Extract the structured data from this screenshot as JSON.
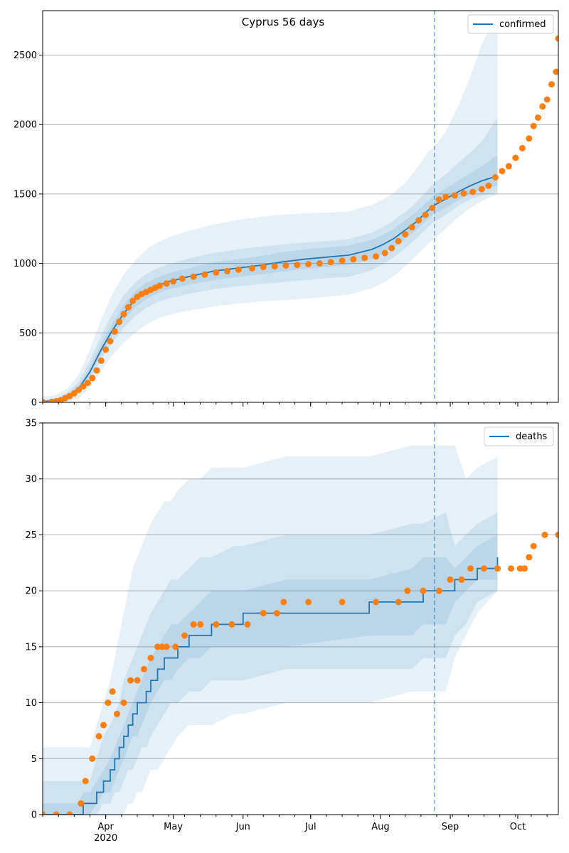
{
  "figure": {
    "title": "Cyprus 56 days",
    "x_ticks": [
      {
        "date": "2020-04-01",
        "label": "Apr",
        "sublabel": "2020"
      },
      {
        "date": "2020-05-01",
        "label": "May",
        "sublabel": ""
      },
      {
        "date": "2020-06-01",
        "label": "Jun",
        "sublabel": ""
      },
      {
        "date": "2020-07-01",
        "label": "Jul",
        "sublabel": ""
      },
      {
        "date": "2020-08-01",
        "label": "Aug",
        "sublabel": ""
      },
      {
        "date": "2020-09-01",
        "label": "Sep",
        "sublabel": ""
      },
      {
        "date": "2020-10-01",
        "label": "Oct",
        "sublabel": ""
      }
    ],
    "colors": {
      "line": "#1f77b4",
      "observed": "#ff7f0e",
      "band": "#1f77b4",
      "grid": "#b0b0b0",
      "vline": "#1f77b4"
    }
  },
  "chart_data": [
    {
      "type": "line",
      "legend": "confirmed",
      "legend_position": "top-right",
      "xlim": [
        "2020-03-04",
        "2020-10-19"
      ],
      "ylim": [
        0,
        2820
      ],
      "y_ticks": [
        0,
        500,
        1000,
        1500,
        2000,
        2500
      ],
      "grid": "horizontal",
      "forecast_start": "2020-08-25",
      "model_median": {
        "x": [
          "2020-03-04",
          "2020-03-10",
          "2020-03-15",
          "2020-03-20",
          "2020-03-25",
          "2020-03-30",
          "2020-04-04",
          "2020-04-09",
          "2020-04-14",
          "2020-04-19",
          "2020-04-24",
          "2020-04-29",
          "2020-05-09",
          "2020-05-19",
          "2020-05-29",
          "2020-06-08",
          "2020-06-18",
          "2020-06-28",
          "2020-07-08",
          "2020-07-18",
          "2020-07-28",
          "2020-08-02",
          "2020-08-07",
          "2020-08-12",
          "2020-08-17",
          "2020-08-22",
          "2020-08-25",
          "2020-08-30",
          "2020-09-05",
          "2020-09-10",
          "2020-09-15",
          "2020-09-22"
        ],
        "y": [
          5,
          15,
          40,
          100,
          220,
          380,
          520,
          640,
          740,
          800,
          840,
          870,
          910,
          945,
          965,
          985,
          1010,
          1030,
          1045,
          1060,
          1100,
          1135,
          1180,
          1240,
          1300,
          1380,
          1420,
          1465,
          1520,
          1560,
          1595,
          1630
        ]
      },
      "bands": [
        {
          "level": "outer",
          "lower": [
            0,
            0,
            5,
            30,
            110,
            230,
            340,
            430,
            500,
            560,
            600,
            630,
            665,
            690,
            710,
            725,
            735,
            745,
            760,
            775,
            820,
            860,
            910,
            980,
            1060,
            1140,
            1180,
            1250,
            1340,
            1400,
            1450,
            1500
          ],
          "upper": [
            40,
            55,
            100,
            200,
            380,
            600,
            780,
            920,
            1020,
            1100,
            1150,
            1190,
            1240,
            1280,
            1310,
            1335,
            1350,
            1360,
            1365,
            1375,
            1420,
            1460,
            1510,
            1580,
            1680,
            1800,
            1840,
            1950,
            2150,
            2350,
            2580,
            2800
          ]
        },
        {
          "level": "middle",
          "lower": [
            1,
            5,
            20,
            65,
            165,
            310,
            430,
            535,
            620,
            680,
            720,
            750,
            785,
            815,
            835,
            850,
            865,
            880,
            895,
            905,
            950,
            995,
            1045,
            1110,
            1180,
            1260,
            1300,
            1350,
            1420,
            1460,
            1490,
            1510
          ],
          "upper": [
            15,
            30,
            70,
            150,
            300,
            480,
            640,
            770,
            860,
            925,
            965,
            995,
            1040,
            1075,
            1100,
            1120,
            1135,
            1150,
            1160,
            1175,
            1220,
            1260,
            1310,
            1370,
            1440,
            1530,
            1580,
            1640,
            1730,
            1800,
            1880,
            2050
          ]
        },
        {
          "level": "inner",
          "lower": [
            3,
            10,
            30,
            85,
            195,
            350,
            480,
            590,
            685,
            745,
            785,
            815,
            850,
            880,
            900,
            920,
            940,
            960,
            975,
            990,
            1030,
            1070,
            1115,
            1175,
            1240,
            1320,
            1360,
            1400,
            1460,
            1500,
            1530,
            1560
          ],
          "upper": [
            8,
            22,
            52,
            122,
            255,
            420,
            570,
            700,
            800,
            860,
            900,
            930,
            970,
            1010,
            1030,
            1050,
            1080,
            1100,
            1115,
            1130,
            1170,
            1205,
            1250,
            1310,
            1370,
            1450,
            1490,
            1540,
            1600,
            1650,
            1700,
            1780
          ]
        }
      ],
      "observed": {
        "x": [
          "2020-03-04",
          "2020-03-08",
          "2020-03-10",
          "2020-03-12",
          "2020-03-14",
          "2020-03-16",
          "2020-03-18",
          "2020-03-20",
          "2020-03-22",
          "2020-03-24",
          "2020-03-26",
          "2020-03-28",
          "2020-03-30",
          "2020-04-01",
          "2020-04-03",
          "2020-04-05",
          "2020-04-07",
          "2020-04-09",
          "2020-04-11",
          "2020-04-13",
          "2020-04-15",
          "2020-04-17",
          "2020-04-19",
          "2020-04-21",
          "2020-04-23",
          "2020-04-25",
          "2020-04-28",
          "2020-05-01",
          "2020-05-05",
          "2020-05-10",
          "2020-05-15",
          "2020-05-20",
          "2020-05-25",
          "2020-05-30",
          "2020-06-05",
          "2020-06-10",
          "2020-06-15",
          "2020-06-20",
          "2020-06-25",
          "2020-06-30",
          "2020-07-05",
          "2020-07-10",
          "2020-07-15",
          "2020-07-20",
          "2020-07-25",
          "2020-07-30",
          "2020-08-03",
          "2020-08-06",
          "2020-08-09",
          "2020-08-12",
          "2020-08-15",
          "2020-08-18",
          "2020-08-21",
          "2020-08-24",
          "2020-08-27",
          "2020-08-30",
          "2020-09-03",
          "2020-09-07",
          "2020-09-11",
          "2020-09-15",
          "2020-09-18",
          "2020-09-21",
          "2020-09-24",
          "2020-09-27",
          "2020-09-30",
          "2020-10-03",
          "2020-10-06",
          "2020-10-08",
          "2020-10-10",
          "2020-10-12",
          "2020-10-14",
          "2020-10-16",
          "2020-10-18",
          "2020-10-19"
        ],
        "y": [
          2,
          4,
          8,
          15,
          30,
          45,
          65,
          90,
          115,
          140,
          175,
          230,
          300,
          380,
          440,
          510,
          580,
          635,
          685,
          730,
          760,
          780,
          795,
          810,
          825,
          840,
          855,
          870,
          890,
          905,
          920,
          935,
          945,
          955,
          965,
          975,
          980,
          985,
          990,
          995,
          1000,
          1010,
          1020,
          1030,
          1040,
          1050,
          1075,
          1110,
          1160,
          1210,
          1260,
          1310,
          1350,
          1400,
          1460,
          1480,
          1490,
          1505,
          1515,
          1535,
          1560,
          1620,
          1665,
          1700,
          1760,
          1830,
          1900,
          1990,
          2050,
          2130,
          2180,
          2290,
          2380,
          2620
        ]
      }
    },
    {
      "type": "line",
      "legend": "deaths",
      "legend_position": "top-right",
      "xlim": [
        "2020-03-04",
        "2020-10-19"
      ],
      "ylim": [
        0,
        35
      ],
      "y_ticks": [
        0,
        5,
        10,
        15,
        20,
        25,
        30,
        35
      ],
      "grid": "horizontal",
      "forecast_start": "2020-08-25",
      "model_median": {
        "x": [
          "2020-03-04",
          "2020-03-20",
          "2020-03-22",
          "2020-03-25",
          "2020-03-28",
          "2020-03-31",
          "2020-04-03",
          "2020-04-05",
          "2020-04-07",
          "2020-04-09",
          "2020-04-11",
          "2020-04-13",
          "2020-04-15",
          "2020-04-17",
          "2020-04-19",
          "2020-04-21",
          "2020-04-24",
          "2020-04-27",
          "2020-04-30",
          "2020-05-03",
          "2020-05-08",
          "2020-05-13",
          "2020-05-18",
          "2020-05-28",
          "2020-06-01",
          "2020-06-20",
          "2020-07-27",
          "2020-08-15",
          "2020-08-20",
          "2020-08-30",
          "2020-09-03",
          "2020-09-08",
          "2020-09-13",
          "2020-09-22"
        ],
        "y": [
          0,
          0,
          1,
          1,
          2,
          3,
          4,
          5,
          6,
          7,
          8,
          9,
          10,
          10,
          11,
          12,
          13,
          14,
          14,
          15,
          16,
          16,
          17,
          17,
          18,
          18,
          19,
          19,
          20,
          20,
          21,
          21,
          22,
          23
        ]
      },
      "bands": [
        {
          "level": "outer",
          "lower": [
            0,
            0,
            0,
            0,
            0,
            0,
            0,
            0,
            0,
            0,
            1,
            1,
            2,
            2,
            3,
            4,
            4,
            5,
            6,
            7,
            8,
            8,
            8,
            9,
            9,
            10,
            10,
            11,
            11,
            11,
            14,
            16,
            18,
            20
          ],
          "upper": [
            6,
            6,
            6,
            6,
            8,
            10,
            12,
            14,
            16,
            18,
            20,
            22,
            23,
            24,
            25,
            26,
            27,
            28,
            28,
            29,
            30,
            30,
            31,
            31,
            31,
            32,
            32,
            33,
            33,
            33,
            33,
            30,
            31,
            32
          ]
        },
        {
          "level": "middle",
          "lower": [
            0,
            0,
            0,
            0,
            0,
            1,
            1,
            2,
            2,
            3,
            4,
            4,
            5,
            6,
            6,
            7,
            8,
            9,
            10,
            10,
            11,
            11,
            12,
            12,
            12,
            13,
            13,
            13,
            14,
            14,
            16,
            17,
            19,
            20
          ],
          "upper": [
            3,
            3,
            3,
            3,
            5,
            7,
            8,
            9,
            10,
            12,
            13,
            14,
            15,
            16,
            17,
            18,
            19,
            20,
            21,
            21,
            22,
            23,
            23,
            24,
            24,
            25,
            25,
            26,
            26,
            27,
            24,
            25,
            26,
            27
          ]
        },
        {
          "level": "inner",
          "lower": [
            0,
            0,
            0,
            0,
            1,
            2,
            2,
            3,
            4,
            5,
            6,
            7,
            7,
            8,
            9,
            10,
            11,
            12,
            12,
            13,
            14,
            14,
            15,
            15,
            15,
            15,
            16,
            16,
            17,
            17,
            19,
            20,
            21,
            21
          ],
          "upper": [
            1,
            1,
            2,
            2,
            3,
            4,
            5,
            6,
            7,
            8,
            9,
            10,
            11,
            12,
            13,
            14,
            15,
            16,
            17,
            17,
            18,
            19,
            20,
            20,
            20,
            21,
            21,
            22,
            23,
            23,
            22,
            23,
            24,
            25
          ]
        }
      ],
      "observed": {
        "x": [
          "2020-03-04",
          "2020-03-10",
          "2020-03-16",
          "2020-03-21",
          "2020-03-23",
          "2020-03-26",
          "2020-03-29",
          "2020-03-31",
          "2020-04-02",
          "2020-04-04",
          "2020-04-06",
          "2020-04-09",
          "2020-04-12",
          "2020-04-15",
          "2020-04-18",
          "2020-04-21",
          "2020-04-24",
          "2020-04-26",
          "2020-04-28",
          "2020-05-02",
          "2020-05-06",
          "2020-05-10",
          "2020-05-13",
          "2020-05-20",
          "2020-05-27",
          "2020-06-03",
          "2020-06-10",
          "2020-06-16",
          "2020-06-19",
          "2020-06-30",
          "2020-07-15",
          "2020-07-30",
          "2020-08-09",
          "2020-08-13",
          "2020-08-20",
          "2020-08-27",
          "2020-09-01",
          "2020-09-06",
          "2020-09-10",
          "2020-09-16",
          "2020-09-22",
          "2020-09-28",
          "2020-10-02",
          "2020-10-04",
          "2020-10-06",
          "2020-10-08",
          "2020-10-13",
          "2020-10-19"
        ],
        "y": [
          0,
          0,
          0,
          1,
          3,
          5,
          7,
          8,
          10,
          11,
          9,
          10,
          12,
          12,
          13,
          14,
          15,
          15,
          15,
          15,
          16,
          17,
          17,
          17,
          17,
          17,
          18,
          18,
          19,
          19,
          19,
          19,
          19,
          20,
          20,
          20,
          21,
          21,
          22,
          22,
          22,
          22,
          22,
          22,
          23,
          24,
          25,
          25
        ]
      }
    }
  ]
}
